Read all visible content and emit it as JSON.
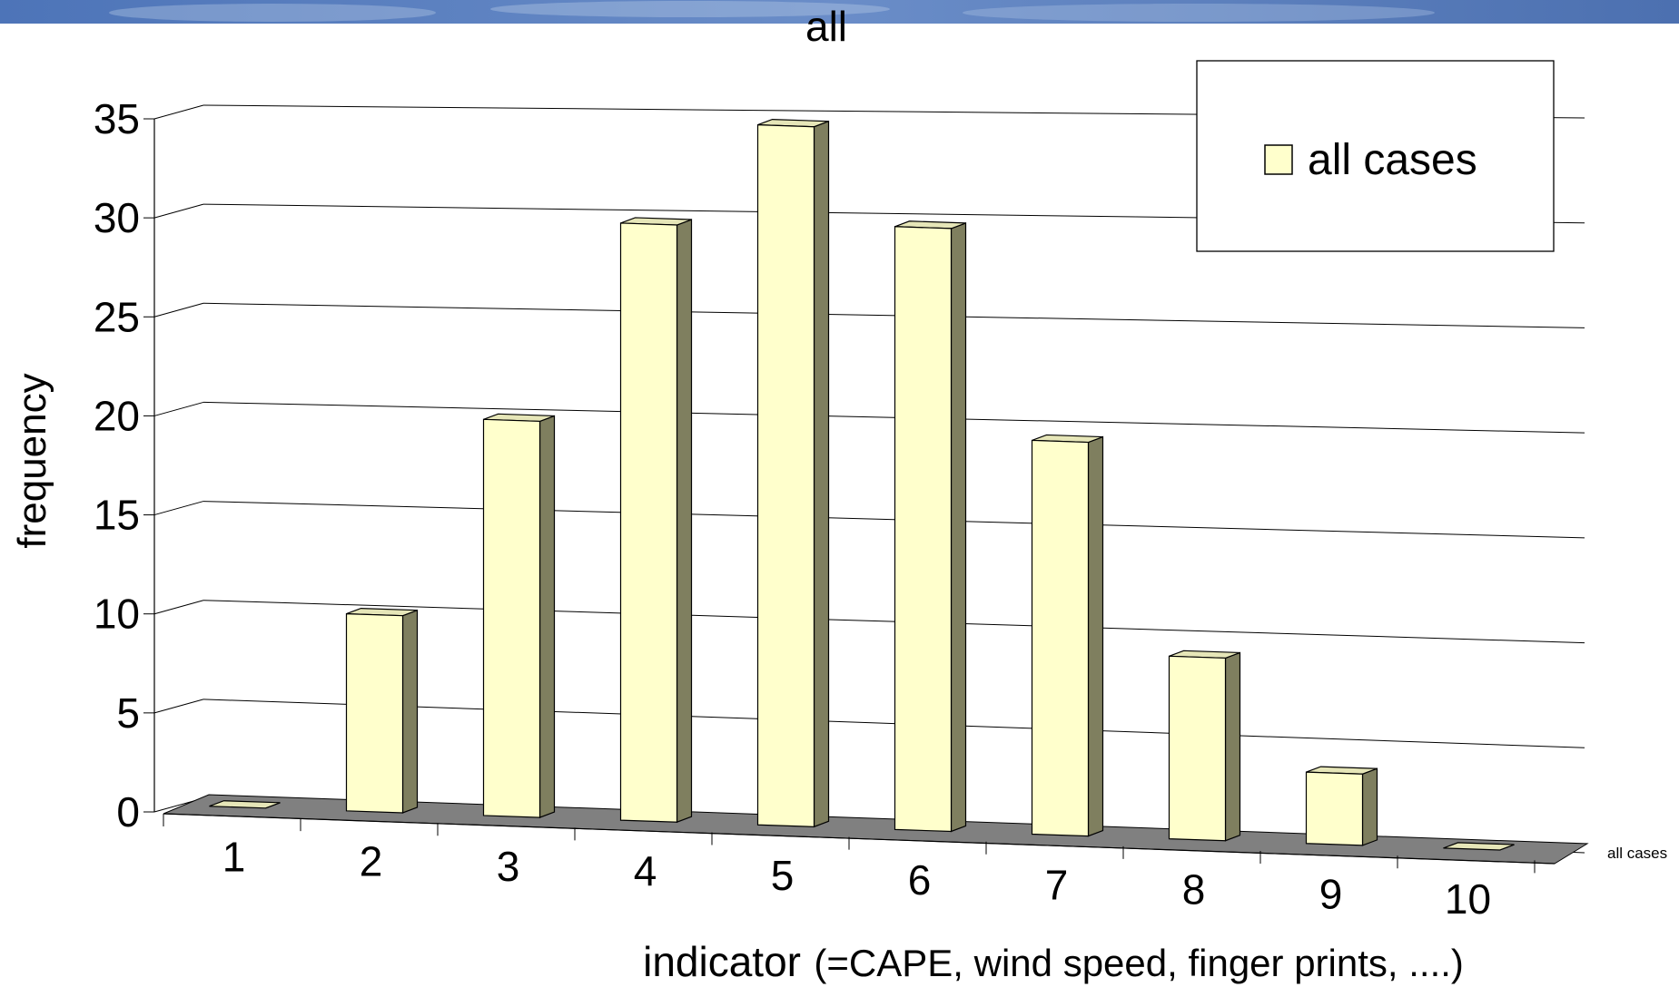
{
  "chart_data": {
    "type": "bar",
    "title": "all",
    "ylabel": "frequency",
    "xlabel": "indicator",
    "xlabel_note": "(=CAPE, wind speed, finger prints, ....)",
    "categories": [
      "1",
      "2",
      "3",
      "4",
      "5",
      "6",
      "7",
      "8",
      "9",
      "10"
    ],
    "series": [
      {
        "name": "all cases",
        "values": [
          0,
          10,
          20,
          30,
          35,
          30,
          19.5,
          9,
          3.5,
          0
        ]
      }
    ],
    "depth_axis_label": "all cases",
    "ylim": [
      0,
      35
    ],
    "yticks": [
      0,
      5,
      10,
      15,
      20,
      25,
      30,
      35
    ],
    "grid": true,
    "legend": "top-right",
    "colors": {
      "bar_front": "#ffffcc",
      "bar_side": "#7f7f5f",
      "bar_top": "#e6e6b8",
      "floor": "#808080",
      "sky": "#5b7fbf"
    }
  }
}
